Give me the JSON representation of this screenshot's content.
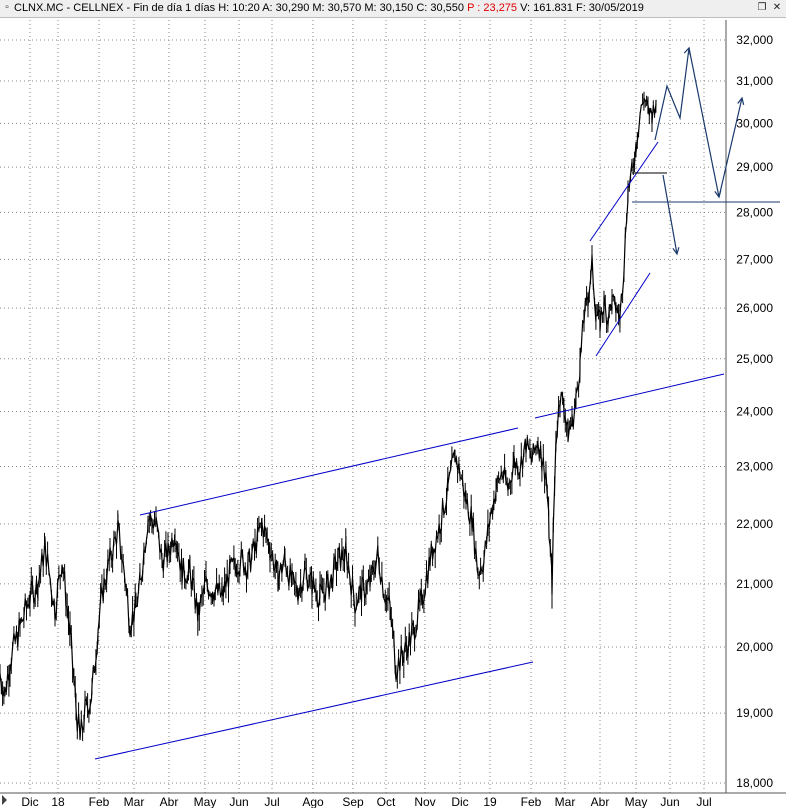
{
  "window": {
    "title_prefix": "CLNX.MC - CELLNEX - Fin de día 1 días  H: 10:20  A: 30,290  M: 30,570  M: 30,150  C: 30,550",
    "title_low_flag": "P : 23,275",
    "title_suffix": "V: 161.831  F: 30/05/2019",
    "restore_glyph": "❐",
    "close_glyph": "✕"
  },
  "chart_data": {
    "type": "line",
    "title": "CLNX.MC - CELLNEX",
    "xlabel": "",
    "ylabel": "",
    "ylim": [
      18,
      32.3
    ],
    "y_scale": "log",
    "y_ticks": [
      18,
      19,
      20,
      21,
      22,
      23,
      24,
      25,
      26,
      27,
      28,
      29,
      30,
      31,
      32
    ],
    "y_tick_labels": [
      "18,000",
      "19,000",
      "20,000",
      "21,000",
      "22,000",
      "23,000",
      "24,000",
      "25,000",
      "26,000",
      "27,000",
      "28,000",
      "29,000",
      "30,000",
      "31,000",
      "32,000"
    ],
    "x_tick_labels": [
      "Dic",
      "18",
      "Feb",
      "Mar",
      "Abr",
      "May",
      "Jun",
      "Jul",
      "Ago",
      "Sep",
      "Oct",
      "Nov",
      "Dic",
      "19",
      "Feb",
      "Mar",
      "Abr",
      "May",
      "Jun",
      "Jul"
    ],
    "grid": true,
    "series": [
      {
        "x": [
          0,
          5,
          10,
          20,
          30,
          38,
          45,
          55,
          62,
          70,
          76,
          80,
          85,
          92,
          98,
          104,
          110,
          118,
          125,
          130,
          136,
          140,
          148,
          156,
          162,
          168,
          175,
          182,
          190,
          198,
          206,
          214,
          222,
          230,
          240,
          248,
          255,
          262,
          270,
          278,
          285,
          292,
          298,
          305,
          312,
          320,
          330,
          338,
          346,
          355,
          362,
          370,
          378,
          384,
          390,
          396,
          404,
          412,
          420,
          430,
          440,
          448,
          455,
          460,
          466,
          472,
          478,
          484,
          490,
          496,
          502,
          508,
          514,
          520,
          526,
          532,
          538,
          542,
          546,
          549,
          552,
          556,
          560,
          564,
          568,
          572,
          576,
          580,
          584,
          588,
          592,
          596,
          600,
          604,
          608,
          612,
          616,
          620,
          624,
          628,
          632,
          636,
          640,
          644,
          648,
          652,
          656
        ],
        "values": [
          19.6,
          19.3,
          19.8,
          20.3,
          20.8,
          21.0,
          21.6,
          20.6,
          21.4,
          20.2,
          19.1,
          18.6,
          19.0,
          19.3,
          20.3,
          21.0,
          21.4,
          21.9,
          21.1,
          20.4,
          20.6,
          21.0,
          22.1,
          22.0,
          21.4,
          21.5,
          21.9,
          21.2,
          21.2,
          20.5,
          21.0,
          20.9,
          20.8,
          21.2,
          21.4,
          21.3,
          21.6,
          22.0,
          21.6,
          21.1,
          21.4,
          21.0,
          20.9,
          21.2,
          21.0,
          20.8,
          21.0,
          21.4,
          21.5,
          20.7,
          20.9,
          21.0,
          21.5,
          20.9,
          20.6,
          19.7,
          19.9,
          20.2,
          20.6,
          21.4,
          22.0,
          22.6,
          23.2,
          22.9,
          22.4,
          22.1,
          21.2,
          21.4,
          22.1,
          22.6,
          22.9,
          22.6,
          23.1,
          23.0,
          23.4,
          23.1,
          23.5,
          23.1,
          22.9,
          21.9,
          21.0,
          23.5,
          24.3,
          24.1,
          23.6,
          23.8,
          24.2,
          24.9,
          25.8,
          26.2,
          26.9,
          25.9,
          25.7,
          26.1,
          25.8,
          26.1,
          26.0,
          25.8,
          26.9,
          28.5,
          28.9,
          29.5,
          30.2,
          30.6,
          30.3,
          30.2,
          30.55
        ]
      }
    ],
    "annotations": "hand-drawn trend channel lines, triangle and projection arrows"
  }
}
